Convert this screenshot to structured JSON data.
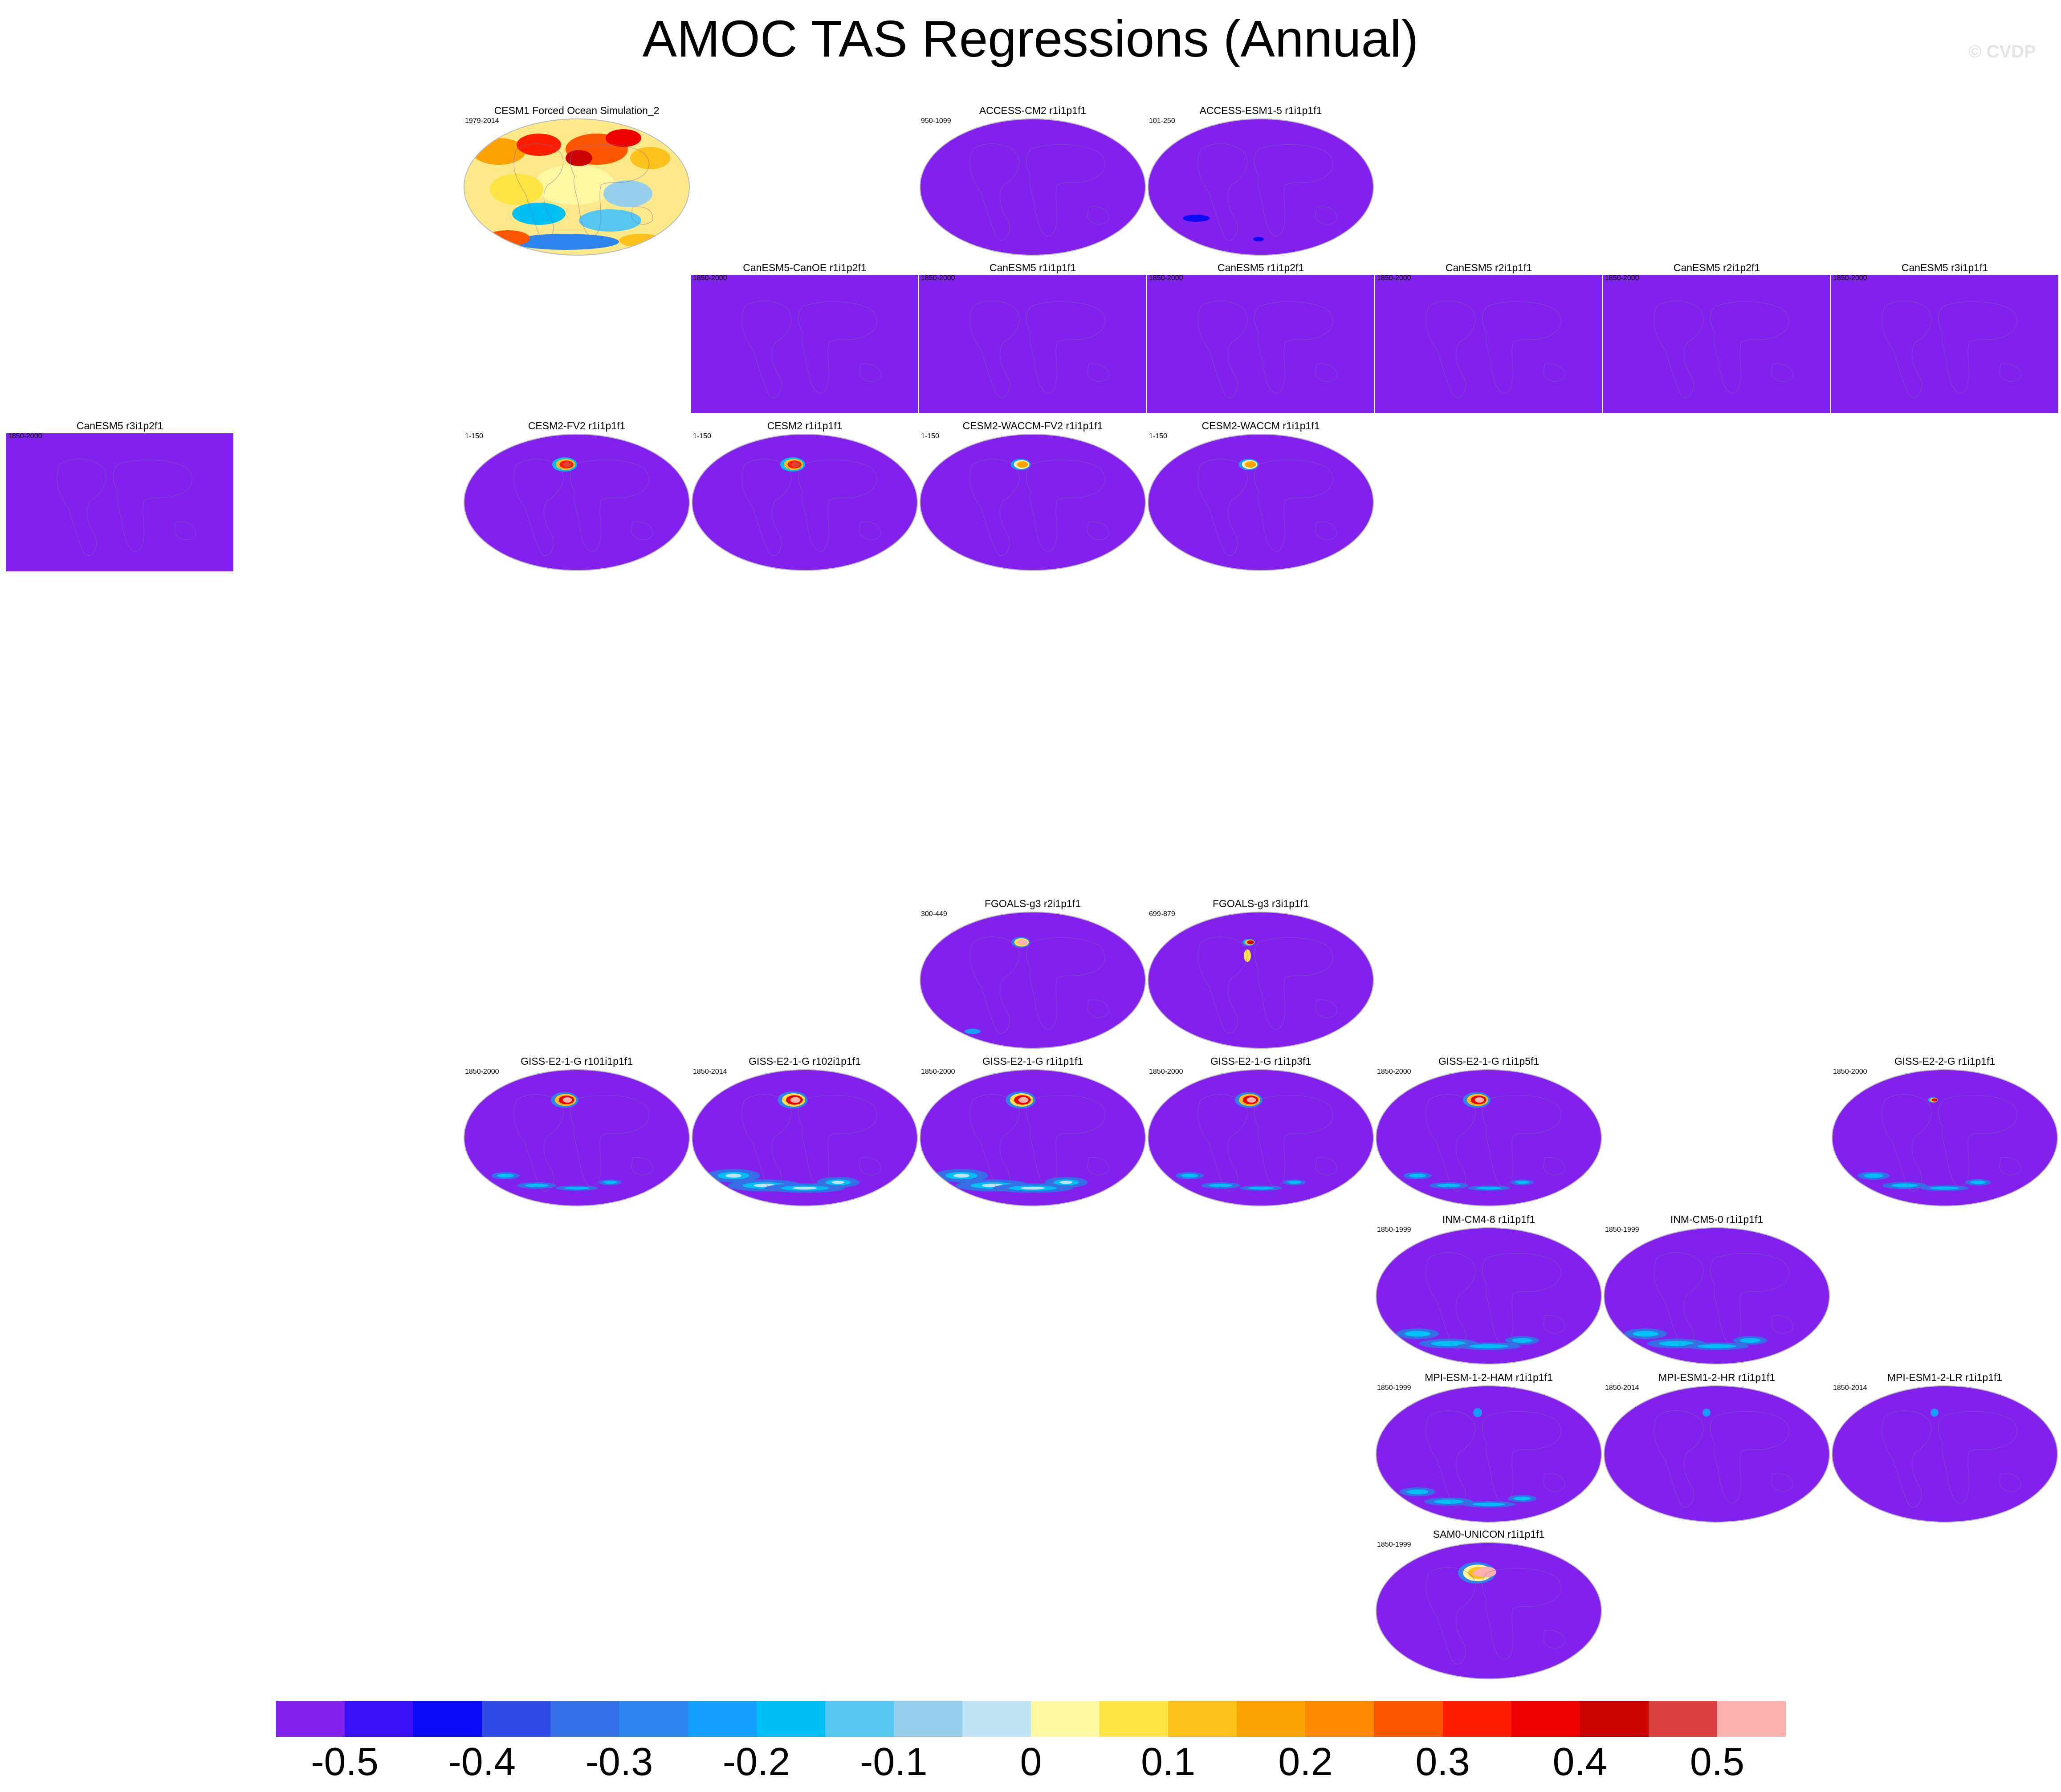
{
  "title": "AMOC TAS Regressions (Annual)",
  "watermark": "© CVDP",
  "chart_data": {
    "type": "heatmap",
    "title": "AMOC TAS Regressions (Annual)",
    "projection": "Robinson (global maps)",
    "colorbar": {
      "levels": [
        -0.5,
        -0.45,
        -0.4,
        -0.35,
        -0.3,
        -0.25,
        -0.2,
        -0.15,
        -0.1,
        -0.05,
        0,
        0.05,
        0.1,
        0.15,
        0.2,
        0.25,
        0.3,
        0.35,
        0.4,
        0.45,
        0.5
      ],
      "tick_labels": [
        "-0.5",
        "-0.4",
        "-0.3",
        "-0.2",
        "-0.1",
        "0",
        "0.1",
        "0.2",
        "0.3",
        "0.4",
        "0.5"
      ],
      "colors": [
        "#8221ee",
        "#3c10f8",
        "#0a0af5",
        "#2f4be5",
        "#356fe6",
        "#2c84ee",
        "#129ef9",
        "#00bff5",
        "#56c6f2",
        "#95cfec",
        "#bfe3f6",
        "#fdf7a1",
        "#fde343",
        "#fcc21b",
        "#fca301",
        "#fd8900",
        "#fe5500",
        "#fd1d00",
        "#ee0001",
        "#cb0000",
        "#dd4242",
        "#fcb1ae"
      ]
    },
    "panels": [
      {
        "title": "CESM1 Forced Ocean Simulation_2",
        "years": "1979-2014",
        "style": "observed",
        "row": 0,
        "col": 2
      },
      {
        "title": "ACCESS-CM2 r1i1p1f1",
        "years": "950-1099",
        "style": "uniform",
        "row": 0,
        "col": 4
      },
      {
        "title": "ACCESS-ESM1-5 r1i1p1f1",
        "years": "101-250",
        "style": "weak-negative",
        "row": 0,
        "col": 5
      },
      {
        "title": "CanESM5-CanOE r1i1p2f1",
        "years": "1850-2000",
        "style": "rect",
        "row": 1,
        "col": 3
      },
      {
        "title": "CanESM5 r1i1p1f1",
        "years": "1850-2000",
        "style": "rect",
        "row": 1,
        "col": 4
      },
      {
        "title": "CanESM5 r1i1p2f1",
        "years": "1850-2000",
        "style": "rect",
        "row": 1,
        "col": 5
      },
      {
        "title": "CanESM5 r2i1p1f1",
        "years": "1850-2000",
        "style": "rect",
        "row": 1,
        "col": 6
      },
      {
        "title": "CanESM5 r2i1p2f1",
        "years": "1850-2000",
        "style": "rect",
        "row": 1,
        "col": 7
      },
      {
        "title": "CanESM5 r3i1p1f1",
        "years": "1850-2000",
        "style": "rect",
        "row": 1,
        "col": 8
      },
      {
        "title": "CanESM5 r3i1p2f1",
        "years": "1850-2000",
        "style": "rect",
        "row": 2,
        "col": 0
      },
      {
        "title": "CESM2-FV2 r1i1p1f1",
        "years": "1-150",
        "style": "na-strong",
        "row": 2,
        "col": 2
      },
      {
        "title": "CESM2 r1i1p1f1",
        "years": "1-150",
        "style": "na-strong",
        "row": 2,
        "col": 3
      },
      {
        "title": "CESM2-WACCM-FV2 r1i1p1f1",
        "years": "1-150",
        "style": "na-weak",
        "row": 2,
        "col": 4
      },
      {
        "title": "CESM2-WACCM r1i1p1f1",
        "years": "1-150",
        "style": "na-weak",
        "row": 2,
        "col": 5
      },
      {
        "title": "FGOALS-g3 r2i1p1f1",
        "years": "300-449",
        "style": "na-pink",
        "row": 7,
        "col": 4
      },
      {
        "title": "FGOALS-g3 r3i1p1f1",
        "years": "699-879",
        "style": "na-small",
        "row": 7,
        "col": 5
      },
      {
        "title": "GISS-E2-1-G r101i1p1f1",
        "years": "1850-2000",
        "style": "giss",
        "row": 8,
        "col": 2
      },
      {
        "title": "GISS-E2-1-G r102i1p1f1",
        "years": "1850-2014",
        "style": "giss-strong",
        "row": 8,
        "col": 3
      },
      {
        "title": "GISS-E2-1-G r1i1p1f1",
        "years": "1850-2000",
        "style": "giss-strong",
        "row": 8,
        "col": 4
      },
      {
        "title": "GISS-E2-1-G r1i1p3f1",
        "years": "1850-2000",
        "style": "giss",
        "row": 8,
        "col": 5
      },
      {
        "title": "GISS-E2-1-G r1i1p5f1",
        "years": "1850-2000",
        "style": "giss",
        "row": 8,
        "col": 6
      },
      {
        "title": "GISS-E2-2-G r1i1p1f1",
        "years": "1850-2000",
        "style": "giss-small",
        "row": 8,
        "col": 8
      },
      {
        "title": "INM-CM4-8 r1i1p1f1",
        "years": "1850-1999",
        "style": "southern",
        "row": 9,
        "col": 6
      },
      {
        "title": "INM-CM5-0 r1i1p1f1",
        "years": "1850-1999",
        "style": "southern",
        "row": 9,
        "col": 7
      },
      {
        "title": "MPI-ESM-1-2-HAM r1i1p1f1",
        "years": "1850-1999",
        "style": "southern-light",
        "row": 10,
        "col": 6
      },
      {
        "title": "MPI-ESM1-2-HR r1i1p1f1",
        "years": "1850-2014",
        "style": "dot",
        "row": 10,
        "col": 7
      },
      {
        "title": "MPI-ESM1-2-LR r1i1p1f1",
        "years": "1850-2014",
        "style": "dot",
        "row": 10,
        "col": 8
      },
      {
        "title": "SAM0-UNICON r1i1p1f1",
        "years": "1850-1999",
        "style": "na-pink-large",
        "row": 11,
        "col": 6
      }
    ]
  }
}
